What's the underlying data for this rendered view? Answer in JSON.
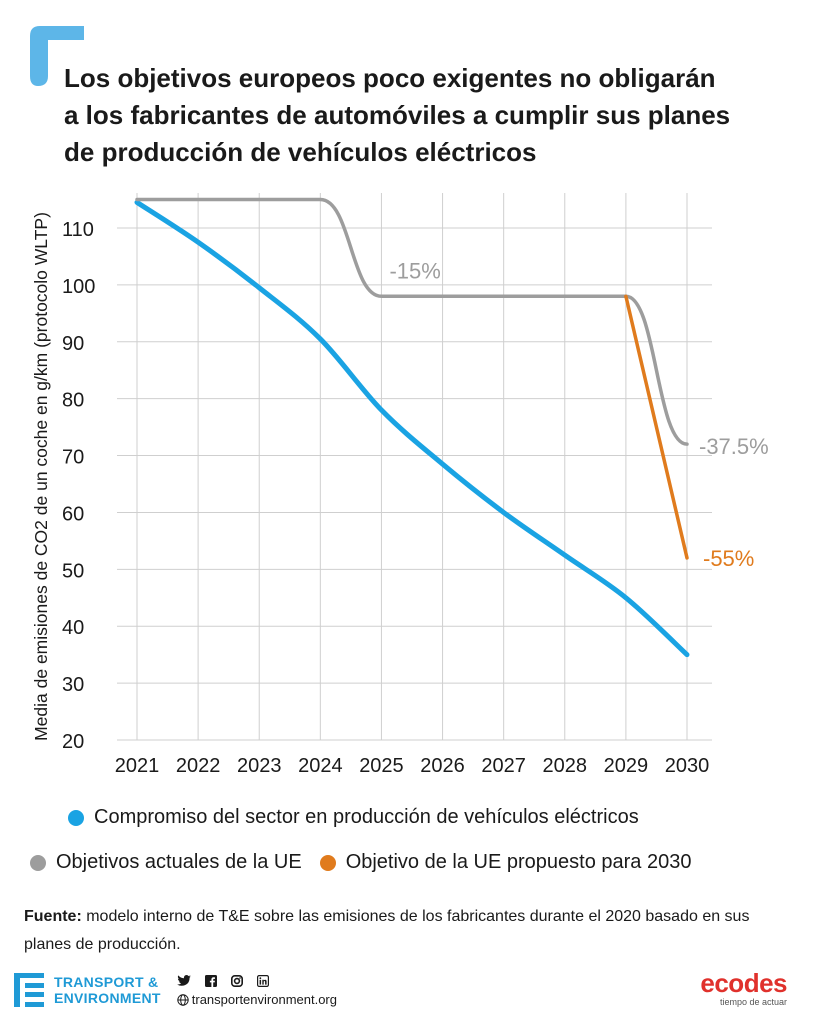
{
  "title_lines": [
    "Los objetivos europeos poco exigentes no obligarán",
    "a los fabricantes de automóviles a cumplir sus planes",
    "de producción de vehículos eléctricos"
  ],
  "colors": {
    "industry": "#1aa3e3",
    "current_targets": "#9d9d9d",
    "proposed_target": "#e07b1d",
    "accent_corner": "#5db6e8",
    "grid": "#cfcfcf"
  },
  "chart_data": {
    "type": "line",
    "ylabel": "Media de emisiones de CO2 de un coche en g/km (protocolo WLTP)",
    "xlabel": "",
    "x": [
      2021,
      2022,
      2023,
      2024,
      2025,
      2026,
      2027,
      2028,
      2029,
      2030
    ],
    "y_ticks": [
      20,
      30,
      40,
      50,
      60,
      70,
      80,
      90,
      100,
      110
    ],
    "ylim": [
      20,
      115
    ],
    "xlim": [
      2021,
      2030
    ],
    "grid": true,
    "series": [
      {
        "name": "Compromiso del sector en producción de vehículos eléctricos",
        "color_key": "industry",
        "points": [
          [
            2021,
            114.5
          ],
          [
            2022,
            107.5
          ],
          [
            2023,
            99.5
          ],
          [
            2024,
            90.5
          ],
          [
            2025,
            78
          ],
          [
            2026,
            68.5
          ],
          [
            2027,
            60
          ],
          [
            2028,
            52.5
          ],
          [
            2029,
            45
          ],
          [
            2030,
            35
          ]
        ]
      },
      {
        "name": "Objetivos actuales de la UE",
        "color_key": "current_targets",
        "points": [
          [
            2021,
            115
          ],
          [
            2024,
            115
          ],
          [
            2025,
            98
          ],
          [
            2029,
            98
          ],
          [
            2030,
            72
          ]
        ]
      },
      {
        "name": "Objetivo de la UE propuesto para 2030",
        "color_key": "proposed_target",
        "points": [
          [
            2029,
            98
          ],
          [
            2030,
            52
          ]
        ]
      }
    ],
    "annotations": [
      {
        "text": "-15%",
        "x": 2025,
        "y": 98,
        "color_key": "current_targets"
      },
      {
        "text": "-37.5%",
        "x": 2030,
        "y": 72,
        "color_key": "current_targets"
      },
      {
        "text": "-55%",
        "x": 2030,
        "y": 52,
        "color_key": "proposed_target"
      }
    ]
  },
  "legend": {
    "row1": [
      {
        "label": "Compromiso del sector en producción de vehículos eléctricos",
        "color_key": "industry"
      }
    ],
    "row2": [
      {
        "label": "Objetivos actuales de la UE",
        "color_key": "current_targets"
      },
      {
        "label": "Objetivo de la UE propuesto para 2030",
        "color_key": "proposed_target"
      }
    ]
  },
  "source": {
    "label": "Fuente:",
    "text": " modelo interno de T&E sobre las emisiones de los fabricantes durante el 2020 basado en sus planes de producción."
  },
  "footer": {
    "te_line1": "TRANSPORT &",
    "te_line2": "ENVIRONMENT",
    "social_icons": [
      "twitter-icon",
      "facebook-icon",
      "instagram-icon",
      "linkedin-icon"
    ],
    "website": "transportenvironment.org",
    "partner_name": "ecodes",
    "partner_tagline": "tiempo de actuar"
  }
}
